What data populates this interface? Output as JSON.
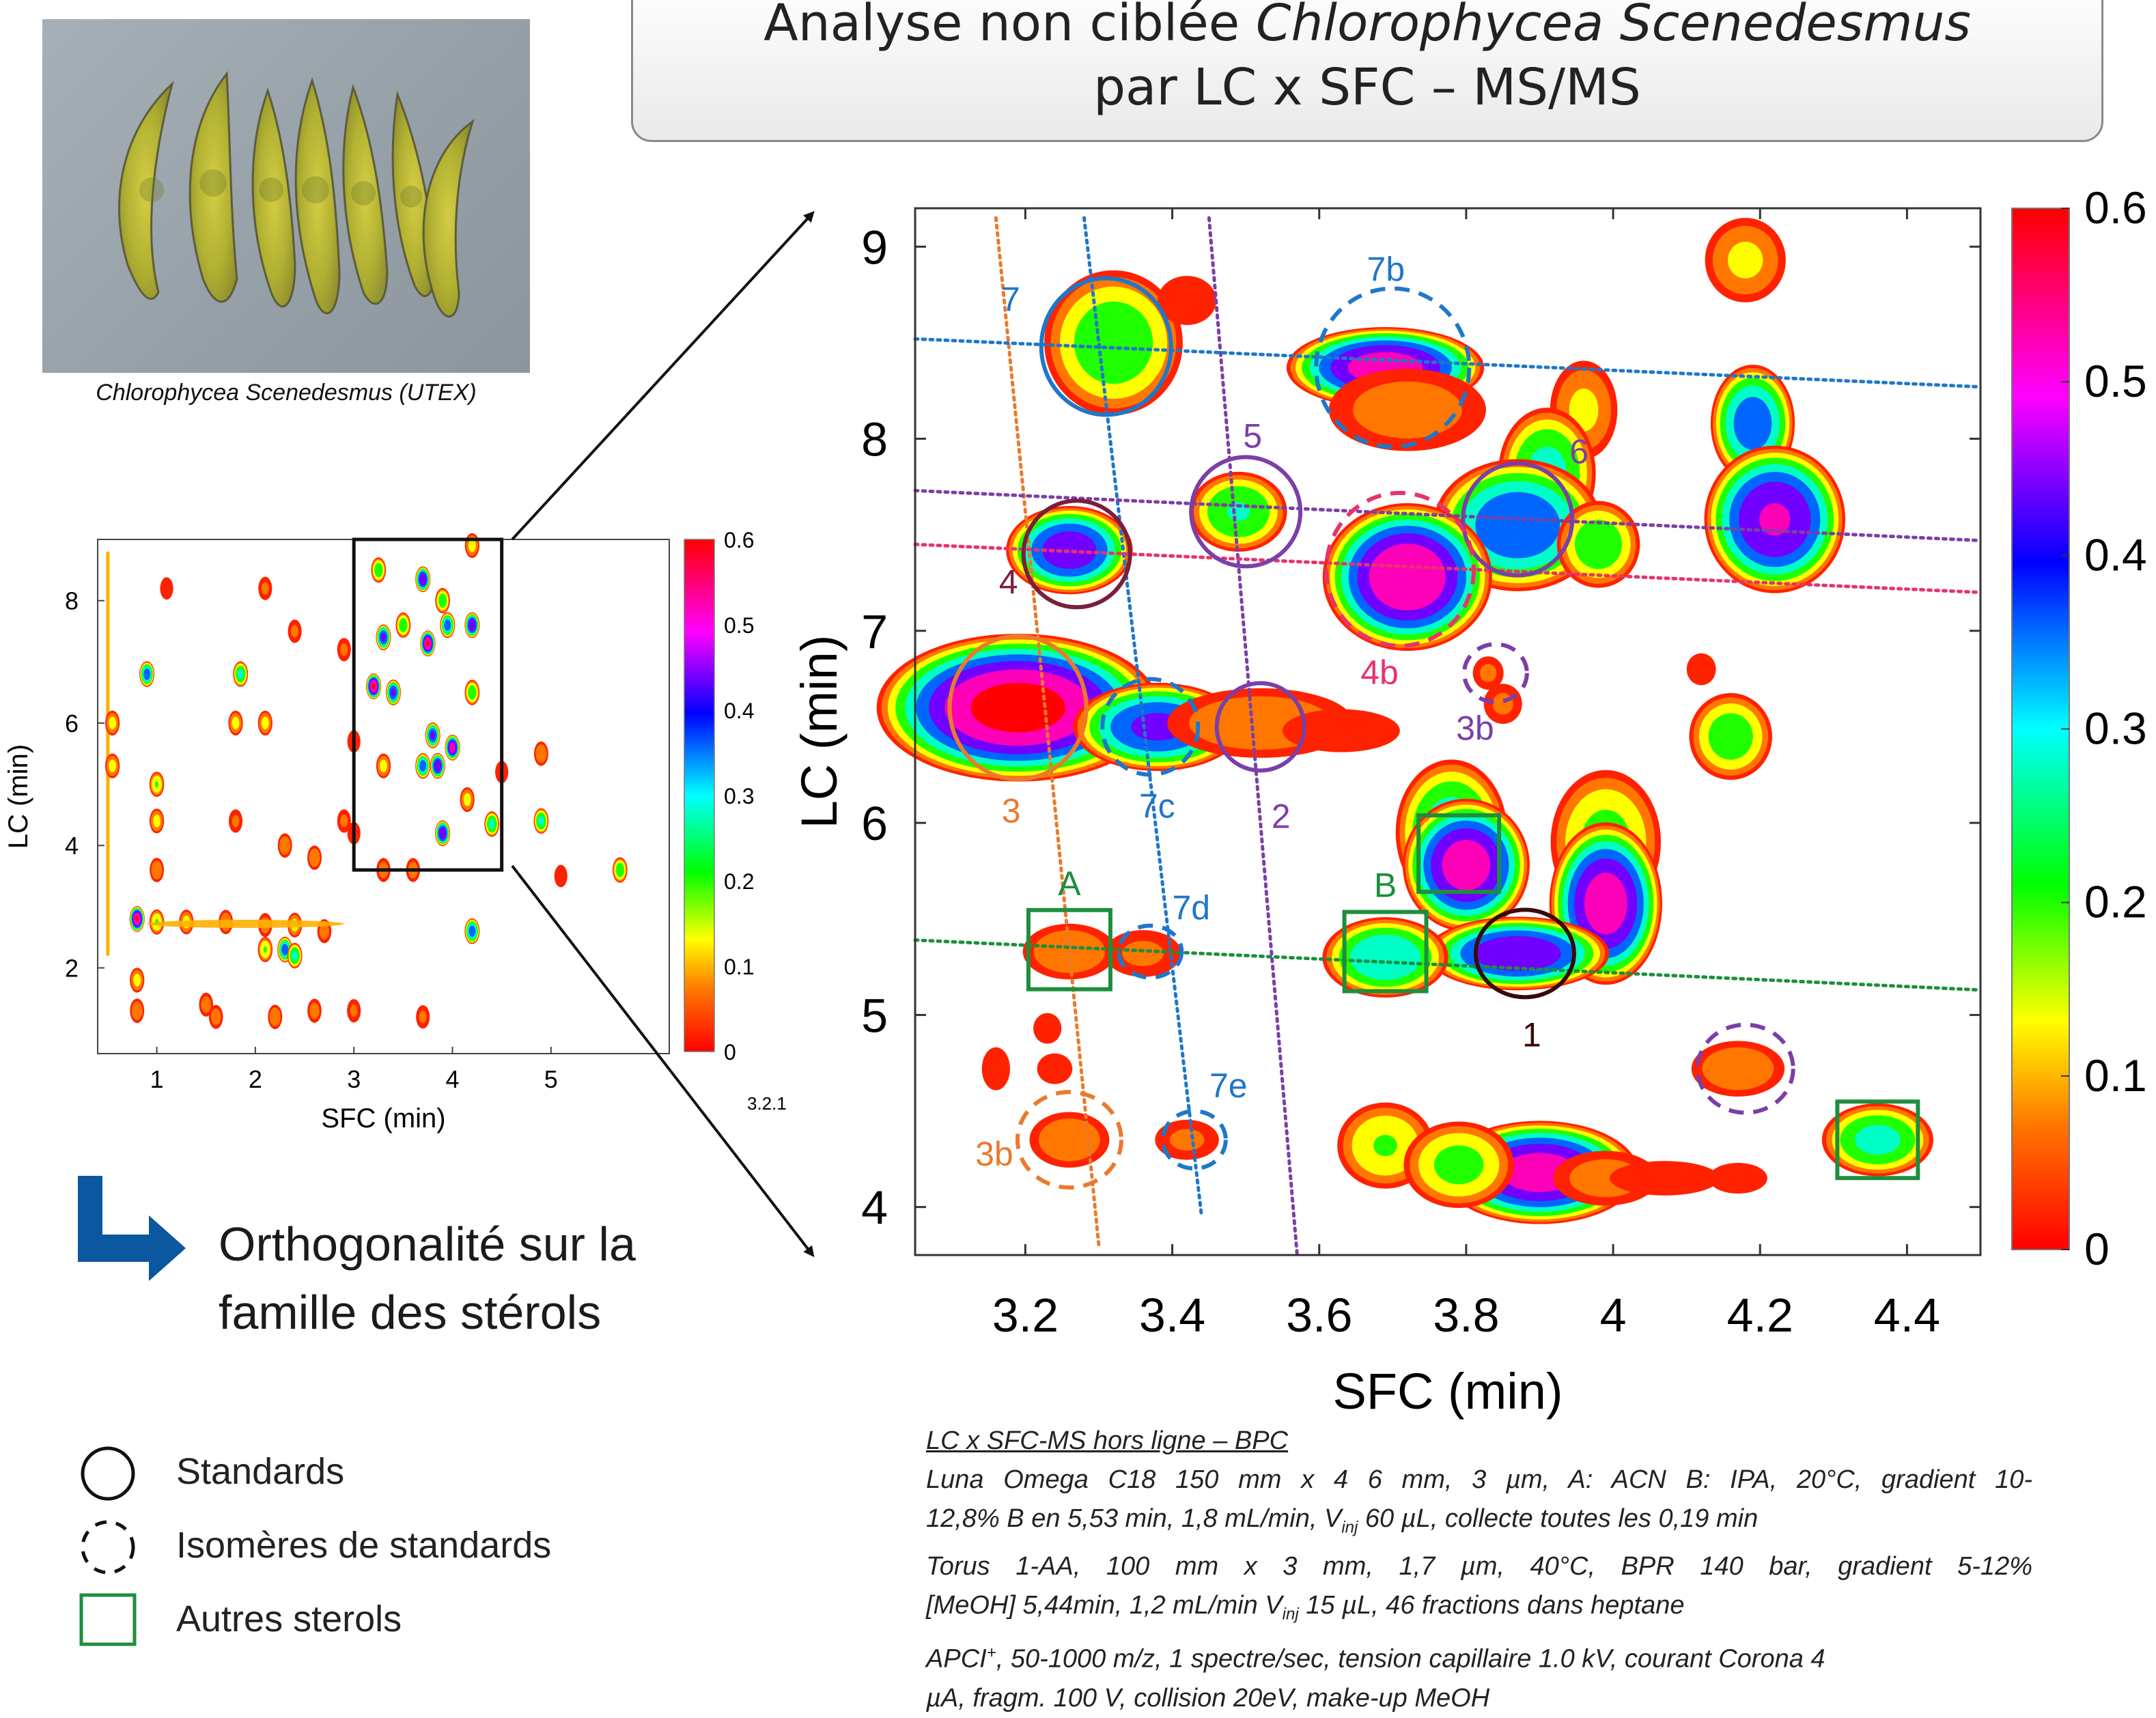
{
  "title": {
    "line1_plain": "Analyse non ciblée ",
    "line1_italic": "Chlorophycea Scenedesmus",
    "line2": "par LC x SFC – MS/MS"
  },
  "photo": {
    "caption": "Chlorophycea Scenedesmus (UTEX)"
  },
  "orthogonality_text": [
    "Orthogonalité sur la",
    "famille des stérols"
  ],
  "legend": [
    {
      "icon": "solid-circle-icon",
      "label": "Standards"
    },
    {
      "icon": "dashed-circle-icon",
      "label": "Isomères de standards"
    },
    {
      "icon": "green-square-icon",
      "label": "Autres sterols"
    }
  ],
  "method": {
    "header": "LC x SFC-MS hors ligne – BPC",
    "lines": [
      "Luna Omega C18 150 mm x 4 6 mm, 3 µm, A: ACN B: IPA, 20°C, gradient 10-",
      "12,8% B en 5,53 min, 1,8 mL/min, V",
      "Torus 1-AA, 100 mm x 3 mm, 1,7 µm, 40°C, BPR 140 bar, gradient 5-12%",
      "[MeOH] 5,44min, 1,2 mL/min V",
      "APCI",
      "µA, fragm. 100 V, collision 20eV, make-up MeOH"
    ],
    "inj_sub": "inj",
    "line2_tail": " 60 µL, collecte toutes les 0,19 min",
    "line4_tail": " 15 µL, 46 fractions dans heptane",
    "line5_sup": "+",
    "line5_tail": ", 50-1000 m/z, 1 spectre/sec, tension capillaire 1.0 kV, courant Corona 4"
  },
  "colors": {
    "std_solid_blue": "#1f77c9",
    "purple": "#7b3fa6",
    "maroon": "#7a1f3c",
    "dark": "#3a0a0a",
    "pink": "#e8336b",
    "orange": "#ea7a2c",
    "green": "#1e8e3e",
    "arrow_blue": "#0b57a0"
  },
  "chart_data": [
    {
      "type": "heatmap",
      "title": "",
      "xlabel": "SFC (min)",
      "ylabel": "LC (min)",
      "xlim": [
        0.4,
        6.2
      ],
      "ylim": [
        0.6,
        9.0
      ],
      "xticks": [
        1,
        2,
        3,
        4,
        5
      ],
      "yticks": [
        2,
        4,
        6,
        8
      ],
      "colorbar": {
        "min": 0,
        "max": 0.6,
        "ticks": [
          0,
          0.1,
          0.2,
          0.3,
          0.4,
          0.5,
          0.6
        ]
      },
      "zoom_box": {
        "x": [
          3.0,
          4.5
        ],
        "y": [
          3.6,
          9.0
        ]
      },
      "version_label": "3.2.1",
      "peaks": [
        {
          "x": 0.8,
          "y": 2.8,
          "i": 0.6
        },
        {
          "x": 1.0,
          "y": 2.75,
          "i": 0.2
        },
        {
          "x": 1.3,
          "y": 2.75,
          "i": 0.15
        },
        {
          "x": 1.7,
          "y": 2.75,
          "i": 0.12
        },
        {
          "x": 2.1,
          "y": 2.7,
          "i": 0.1
        },
        {
          "x": 2.4,
          "y": 2.7,
          "i": 0.15
        },
        {
          "x": 2.7,
          "y": 2.6,
          "i": 0.1
        },
        {
          "x": 0.9,
          "y": 6.8,
          "i": 0.4
        },
        {
          "x": 1.85,
          "y": 6.8,
          "i": 0.3
        },
        {
          "x": 2.1,
          "y": 6.0,
          "i": 0.15
        },
        {
          "x": 1.8,
          "y": 6.0,
          "i": 0.15
        },
        {
          "x": 0.55,
          "y": 6.0,
          "i": 0.15
        },
        {
          "x": 0.55,
          "y": 5.3,
          "i": 0.15
        },
        {
          "x": 1.0,
          "y": 5.0,
          "i": 0.2
        },
        {
          "x": 1.0,
          "y": 4.4,
          "i": 0.15
        },
        {
          "x": 1.0,
          "y": 3.6,
          "i": 0.12
        },
        {
          "x": 1.8,
          "y": 4.4,
          "i": 0.08
        },
        {
          "x": 2.3,
          "y": 4.0,
          "i": 0.12
        },
        {
          "x": 2.6,
          "y": 3.8,
          "i": 0.12
        },
        {
          "x": 2.3,
          "y": 2.3,
          "i": 0.4
        },
        {
          "x": 2.4,
          "y": 2.2,
          "i": 0.3
        },
        {
          "x": 2.1,
          "y": 2.3,
          "i": 0.2
        },
        {
          "x": 0.8,
          "y": 1.8,
          "i": 0.15
        },
        {
          "x": 0.8,
          "y": 1.3,
          "i": 0.12
        },
        {
          "x": 1.5,
          "y": 1.4,
          "i": 0.1
        },
        {
          "x": 1.6,
          "y": 1.2,
          "i": 0.1
        },
        {
          "x": 2.2,
          "y": 1.2,
          "i": 0.12
        },
        {
          "x": 2.6,
          "y": 1.3,
          "i": 0.1
        },
        {
          "x": 3.0,
          "y": 1.3,
          "i": 0.08
        },
        {
          "x": 3.7,
          "y": 1.2,
          "i": 0.08
        },
        {
          "x": 2.1,
          "y": 8.2,
          "i": 0.08
        },
        {
          "x": 2.4,
          "y": 7.5,
          "i": 0.08
        },
        {
          "x": 2.9,
          "y": 7.2,
          "i": 0.08
        },
        {
          "x": 1.1,
          "y": 8.2,
          "i": 0.06
        },
        {
          "x": 3.25,
          "y": 8.5,
          "i": 0.25
        },
        {
          "x": 3.7,
          "y": 8.35,
          "i": 0.5
        },
        {
          "x": 3.9,
          "y": 8.0,
          "i": 0.25
        },
        {
          "x": 4.2,
          "y": 8.9,
          "i": 0.15
        },
        {
          "x": 3.3,
          "y": 7.4,
          "i": 0.45
        },
        {
          "x": 3.5,
          "y": 7.6,
          "i": 0.25
        },
        {
          "x": 3.75,
          "y": 7.3,
          "i": 0.6
        },
        {
          "x": 3.95,
          "y": 7.6,
          "i": 0.4
        },
        {
          "x": 4.2,
          "y": 7.6,
          "i": 0.5
        },
        {
          "x": 3.2,
          "y": 6.6,
          "i": 0.6
        },
        {
          "x": 3.4,
          "y": 6.5,
          "i": 0.45
        },
        {
          "x": 4.2,
          "y": 6.5,
          "i": 0.25
        },
        {
          "x": 3.8,
          "y": 5.8,
          "i": 0.45
        },
        {
          "x": 4.0,
          "y": 5.6,
          "i": 0.55
        },
        {
          "x": 3.85,
          "y": 5.3,
          "i": 0.5
        },
        {
          "x": 3.7,
          "y": 5.3,
          "i": 0.4
        },
        {
          "x": 3.3,
          "y": 5.3,
          "i": 0.15
        },
        {
          "x": 3.9,
          "y": 4.2,
          "i": 0.5
        },
        {
          "x": 4.4,
          "y": 4.35,
          "i": 0.3
        },
        {
          "x": 4.15,
          "y": 4.75,
          "i": 0.15
        },
        {
          "x": 4.2,
          "y": 2.6,
          "i": 0.4
        },
        {
          "x": 4.9,
          "y": 4.4,
          "i": 0.3
        },
        {
          "x": 4.9,
          "y": 5.5,
          "i": 0.12
        },
        {
          "x": 5.7,
          "y": 3.6,
          "i": 0.25
        },
        {
          "x": 3.3,
          "y": 3.6,
          "i": 0.1
        },
        {
          "x": 3.6,
          "y": 3.6,
          "i": 0.1
        },
        {
          "x": 2.9,
          "y": 4.4,
          "i": 0.08
        },
        {
          "x": 3.0,
          "y": 5.7,
          "i": 0.06
        },
        {
          "x": 4.5,
          "y": 5.2,
          "i": 0.06
        },
        {
          "x": 5.1,
          "y": 3.5,
          "i": 0.06
        },
        {
          "x": 3.0,
          "y": 4.2,
          "i": 0.06
        }
      ]
    },
    {
      "type": "heatmap",
      "title": "",
      "xlabel": "SFC (min)",
      "ylabel": "LC (min)",
      "xlim": [
        3.05,
        4.5
      ],
      "ylim": [
        3.75,
        9.2
      ],
      "xticks": [
        3.2,
        3.4,
        3.6,
        3.8,
        4,
        4.2,
        4.4
      ],
      "xtick_labels": [
        "3.2",
        "3.4",
        "3.6",
        "3.8",
        "4",
        "4.2",
        "4.4"
      ],
      "yticks": [
        4,
        5,
        6,
        7,
        8,
        9
      ],
      "colorbar": {
        "min": 0,
        "max": 0.6,
        "ticks": [
          0,
          0.1,
          0.2,
          0.3,
          0.4,
          0.5,
          0.6
        ]
      },
      "peaks": [
        {
          "x": 3.32,
          "y": 8.5,
          "i": 0.25,
          "sx": 0.05,
          "sy": 0.2
        },
        {
          "x": 3.42,
          "y": 8.72,
          "i": 0.05,
          "sx": 0.025,
          "sy": 0.08
        },
        {
          "x": 3.69,
          "y": 8.37,
          "i": 0.55,
          "sx": 0.07,
          "sy": 0.11
        },
        {
          "x": 3.72,
          "y": 8.15,
          "i": 0.1,
          "sx": 0.06,
          "sy": 0.12
        },
        {
          "x": 4.18,
          "y": 8.93,
          "i": 0.14,
          "sx": 0.03,
          "sy": 0.12
        },
        {
          "x": 3.96,
          "y": 8.15,
          "i": 0.14,
          "sx": 0.025,
          "sy": 0.14
        },
        {
          "x": 3.91,
          "y": 7.82,
          "i": 0.3,
          "sx": 0.035,
          "sy": 0.18
        },
        {
          "x": 3.87,
          "y": 7.55,
          "i": 0.42,
          "sx": 0.06,
          "sy": 0.18
        },
        {
          "x": 3.98,
          "y": 7.45,
          "i": 0.25,
          "sx": 0.03,
          "sy": 0.12
        },
        {
          "x": 4.19,
          "y": 8.08,
          "i": 0.4,
          "sx": 0.03,
          "sy": 0.16
        },
        {
          "x": 4.22,
          "y": 7.58,
          "i": 0.52,
          "sx": 0.05,
          "sy": 0.2
        },
        {
          "x": 3.26,
          "y": 7.42,
          "i": 0.48,
          "sx": 0.045,
          "sy": 0.12
        },
        {
          "x": 3.49,
          "y": 7.62,
          "i": 0.28,
          "sx": 0.035,
          "sy": 0.11
        },
        {
          "x": 3.72,
          "y": 7.28,
          "i": 0.58,
          "sx": 0.06,
          "sy": 0.2
        },
        {
          "x": 4.12,
          "y": 6.8,
          "i": 0.06,
          "sx": 0.012,
          "sy": 0.05
        },
        {
          "x": 3.83,
          "y": 6.78,
          "i": 0.08,
          "sx": 0.012,
          "sy": 0.05
        },
        {
          "x": 3.85,
          "y": 6.62,
          "i": 0.08,
          "sx": 0.015,
          "sy": 0.06
        },
        {
          "x": 3.19,
          "y": 6.6,
          "i": 0.62,
          "sx": 0.1,
          "sy": 0.2
        },
        {
          "x": 3.38,
          "y": 6.5,
          "i": 0.45,
          "sx": 0.06,
          "sy": 0.12
        },
        {
          "x": 3.52,
          "y": 6.52,
          "i": 0.12,
          "sx": 0.07,
          "sy": 0.1
        },
        {
          "x": 3.63,
          "y": 6.48,
          "i": 0.05,
          "sx": 0.05,
          "sy": 0.07
        },
        {
          "x": 4.16,
          "y": 6.45,
          "i": 0.24,
          "sx": 0.03,
          "sy": 0.12
        },
        {
          "x": 3.78,
          "y": 5.95,
          "i": 0.32,
          "sx": 0.04,
          "sy": 0.2
        },
        {
          "x": 3.8,
          "y": 5.78,
          "i": 0.55,
          "sx": 0.045,
          "sy": 0.18
        },
        {
          "x": 3.99,
          "y": 5.9,
          "i": 0.22,
          "sx": 0.04,
          "sy": 0.2
        },
        {
          "x": 3.99,
          "y": 5.58,
          "i": 0.55,
          "sx": 0.04,
          "sy": 0.22
        },
        {
          "x": 3.87,
          "y": 5.32,
          "i": 0.5,
          "sx": 0.065,
          "sy": 0.1
        },
        {
          "x": 3.69,
          "y": 5.3,
          "i": 0.35,
          "sx": 0.045,
          "sy": 0.11
        },
        {
          "x": 3.26,
          "y": 5.33,
          "i": 0.12,
          "sx": 0.035,
          "sy": 0.08
        },
        {
          "x": 3.36,
          "y": 5.32,
          "i": 0.08,
          "sx": 0.03,
          "sy": 0.07
        },
        {
          "x": 3.23,
          "y": 4.93,
          "i": 0.05,
          "sx": 0.012,
          "sy": 0.05
        },
        {
          "x": 3.16,
          "y": 4.72,
          "i": 0.05,
          "sx": 0.012,
          "sy": 0.07
        },
        {
          "x": 3.24,
          "y": 4.72,
          "i": 0.05,
          "sx": 0.015,
          "sy": 0.05
        },
        {
          "x": 3.26,
          "y": 4.35,
          "i": 0.12,
          "sx": 0.03,
          "sy": 0.08
        },
        {
          "x": 3.42,
          "y": 4.35,
          "i": 0.08,
          "sx": 0.025,
          "sy": 0.06
        },
        {
          "x": 4.17,
          "y": 4.72,
          "i": 0.12,
          "sx": 0.035,
          "sy": 0.08
        },
        {
          "x": 4.36,
          "y": 4.35,
          "i": 0.3,
          "sx": 0.04,
          "sy": 0.1
        },
        {
          "x": 3.9,
          "y": 4.18,
          "i": 0.55,
          "sx": 0.07,
          "sy": 0.14
        },
        {
          "x": 3.69,
          "y": 4.32,
          "i": 0.2,
          "sx": 0.035,
          "sy": 0.12
        },
        {
          "x": 3.79,
          "y": 4.22,
          "i": 0.22,
          "sx": 0.04,
          "sy": 0.12
        },
        {
          "x": 3.99,
          "y": 4.15,
          "i": 0.1,
          "sx": 0.04,
          "sy": 0.08
        },
        {
          "x": 4.07,
          "y": 4.15,
          "i": 0.04,
          "sx": 0.05,
          "sy": 0.06
        },
        {
          "x": 4.17,
          "y": 4.15,
          "i": 0.05,
          "sx": 0.025,
          "sy": 0.05
        }
      ],
      "annotations": [
        {
          "label": "7",
          "x": 3.31,
          "y": 8.48,
          "shape": "circle",
          "style": "solid",
          "color": "#1f77c9"
        },
        {
          "label": "7b",
          "x": 3.7,
          "y": 8.37,
          "shape": "circle",
          "style": "dashed",
          "color": "#1f77c9"
        },
        {
          "label": "5",
          "x": 3.5,
          "y": 7.62,
          "shape": "circle",
          "style": "solid",
          "color": "#7b3fa6"
        },
        {
          "label": "6",
          "x": 3.87,
          "y": 7.58,
          "shape": "circle",
          "style": "solid",
          "color": "#7b3fa6"
        },
        {
          "label": "4",
          "x": 3.27,
          "y": 7.4,
          "shape": "circle",
          "style": "solid",
          "color": "#7a1f3c"
        },
        {
          "label": "4b",
          "x": 3.71,
          "y": 7.32,
          "shape": "circle",
          "style": "dashed",
          "color": "#e8336b"
        },
        {
          "label": "3b",
          "x": 3.84,
          "y": 6.78,
          "shape": "circle",
          "style": "dashed",
          "color": "#7b3fa6"
        },
        {
          "label": "3",
          "x": 3.19,
          "y": 6.6,
          "shape": "circle",
          "style": "solid",
          "color": "#ea7a2c"
        },
        {
          "label": "7c",
          "x": 3.37,
          "y": 6.5,
          "shape": "circle",
          "style": "dashed",
          "color": "#1f77c9"
        },
        {
          "label": "2",
          "x": 3.52,
          "y": 6.5,
          "shape": "circle",
          "style": "solid",
          "color": "#7b3fa6"
        },
        {
          "label": "A",
          "x": 3.26,
          "y": 5.34,
          "shape": "square",
          "style": "solid",
          "color": "#1e8e3e"
        },
        {
          "label": "7d",
          "x": 3.37,
          "y": 5.33,
          "shape": "circle",
          "style": "dashed",
          "color": "#1f77c9"
        },
        {
          "label": "B",
          "x": 3.69,
          "y": 5.33,
          "shape": "square",
          "style": "solid",
          "color": "#1e8e3e"
        },
        {
          "label": "1",
          "x": 3.88,
          "y": 5.32,
          "shape": "circle",
          "style": "solid",
          "color": "#3a0a0a"
        },
        {
          "label": "3b",
          "x": 4.18,
          "y": 4.72,
          "shape": "circle",
          "style": "dashed",
          "color": "#7b3fa6"
        },
        {
          "label": "7e",
          "x": 3.43,
          "y": 4.35,
          "shape": "circle",
          "style": "dashed",
          "color": "#1f77c9"
        },
        {
          "label": "3b",
          "x": 3.26,
          "y": 4.35,
          "shape": "circle",
          "style": "dashed",
          "color": "#ea7a2c"
        },
        {
          "label": "",
          "x": 4.36,
          "y": 4.35,
          "shape": "square",
          "style": "solid",
          "color": "#1e8e3e"
        },
        {
          "label": "",
          "x": 3.79,
          "y": 5.84,
          "shape": "square",
          "style": "solid",
          "color": "#1e8e3e"
        }
      ],
      "trend_lines": [
        {
          "color": "#ea7a2c",
          "from": [
            3.16,
            9.15
          ],
          "to": [
            3.3,
            3.8
          ]
        },
        {
          "color": "#1f77c9",
          "from": [
            3.28,
            9.15
          ],
          "to": [
            3.44,
            3.95
          ]
        },
        {
          "color": "#7b3fa6",
          "from": [
            3.45,
            9.15
          ],
          "to": [
            3.57,
            3.75
          ]
        },
        {
          "color": "#1f77c9",
          "from": [
            3.05,
            8.52
          ],
          "to": [
            4.5,
            8.27
          ]
        },
        {
          "color": "#7b3fa6",
          "from": [
            3.05,
            7.73
          ],
          "to": [
            4.5,
            7.47
          ]
        },
        {
          "color": "#e8336b",
          "from": [
            3.05,
            7.45
          ],
          "to": [
            4.5,
            7.2
          ]
        },
        {
          "color": "#1e8e3e",
          "from": [
            3.05,
            5.39
          ],
          "to": [
            4.5,
            5.13
          ]
        }
      ]
    }
  ]
}
